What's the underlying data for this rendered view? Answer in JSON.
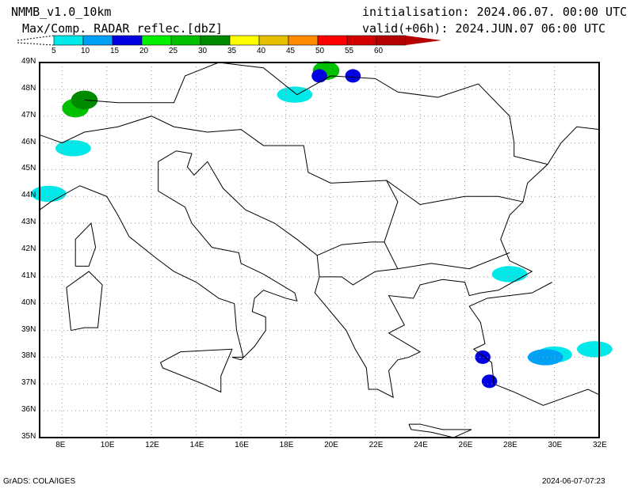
{
  "header": {
    "model": "NMMB_v1.0_10km",
    "field": "Max/Comp. RADAR reflec.[dbZ]",
    "init": "initialisation: 2024.06.07. 00:00 UTC",
    "valid": "valid(+06h): 2024.JUN.07 06:00 UTC"
  },
  "colorbar": {
    "ticks": [
      "5",
      "10",
      "15",
      "20",
      "25",
      "30",
      "35",
      "40",
      "45",
      "50",
      "55",
      "60"
    ],
    "colors": [
      "#00e8e8",
      "#00a0f5",
      "#0000e0",
      "#00f000",
      "#00c000",
      "#008a00",
      "#ffff00",
      "#e6c000",
      "#ff8c00",
      "#ff0000",
      "#d20000",
      "#b40000"
    ]
  },
  "footer": {
    "left": "GrADS: COLA/IGES",
    "right": "2024-06-07-07:23"
  },
  "chart_data": {
    "type": "heatmap",
    "title": "Max/Comp. RADAR reflec.[dbZ]",
    "x_ticks": [
      "8E",
      "10E",
      "12E",
      "14E",
      "16E",
      "18E",
      "20E",
      "22E",
      "24E",
      "26E",
      "28E",
      "30E",
      "32E"
    ],
    "y_ticks": [
      "35N",
      "36N",
      "37N",
      "38N",
      "39N",
      "40N",
      "41N",
      "42N",
      "43N",
      "44N",
      "45N",
      "46N",
      "47N",
      "48N",
      "49N"
    ],
    "xlim": [
      7,
      32
    ],
    "ylim": [
      35,
      49
    ],
    "grid": true,
    "echoes": [
      {
        "lon": 8.6,
        "lat": 47.3,
        "dbz": 28
      },
      {
        "lon": 9.0,
        "lat": 47.6,
        "dbz": 32
      },
      {
        "lon": 8.5,
        "lat": 45.8,
        "dbz": 7
      },
      {
        "lon": 7.4,
        "lat": 44.1,
        "dbz": 7
      },
      {
        "lon": 19.8,
        "lat": 48.7,
        "dbz": 27
      },
      {
        "lon": 19.5,
        "lat": 48.5,
        "dbz": 17
      },
      {
        "lon": 18.4,
        "lat": 47.8,
        "dbz": 8
      },
      {
        "lon": 21.0,
        "lat": 48.5,
        "dbz": 17
      },
      {
        "lon": 30.0,
        "lat": 38.1,
        "dbz": 8
      },
      {
        "lon": 29.6,
        "lat": 38.0,
        "dbz": 12
      },
      {
        "lon": 26.8,
        "lat": 38.0,
        "dbz": 16
      },
      {
        "lon": 27.1,
        "lat": 37.1,
        "dbz": 18
      },
      {
        "lon": 28.0,
        "lat": 41.1,
        "dbz": 7
      },
      {
        "lon": 31.8,
        "lat": 38.3,
        "dbz": 9
      }
    ]
  }
}
